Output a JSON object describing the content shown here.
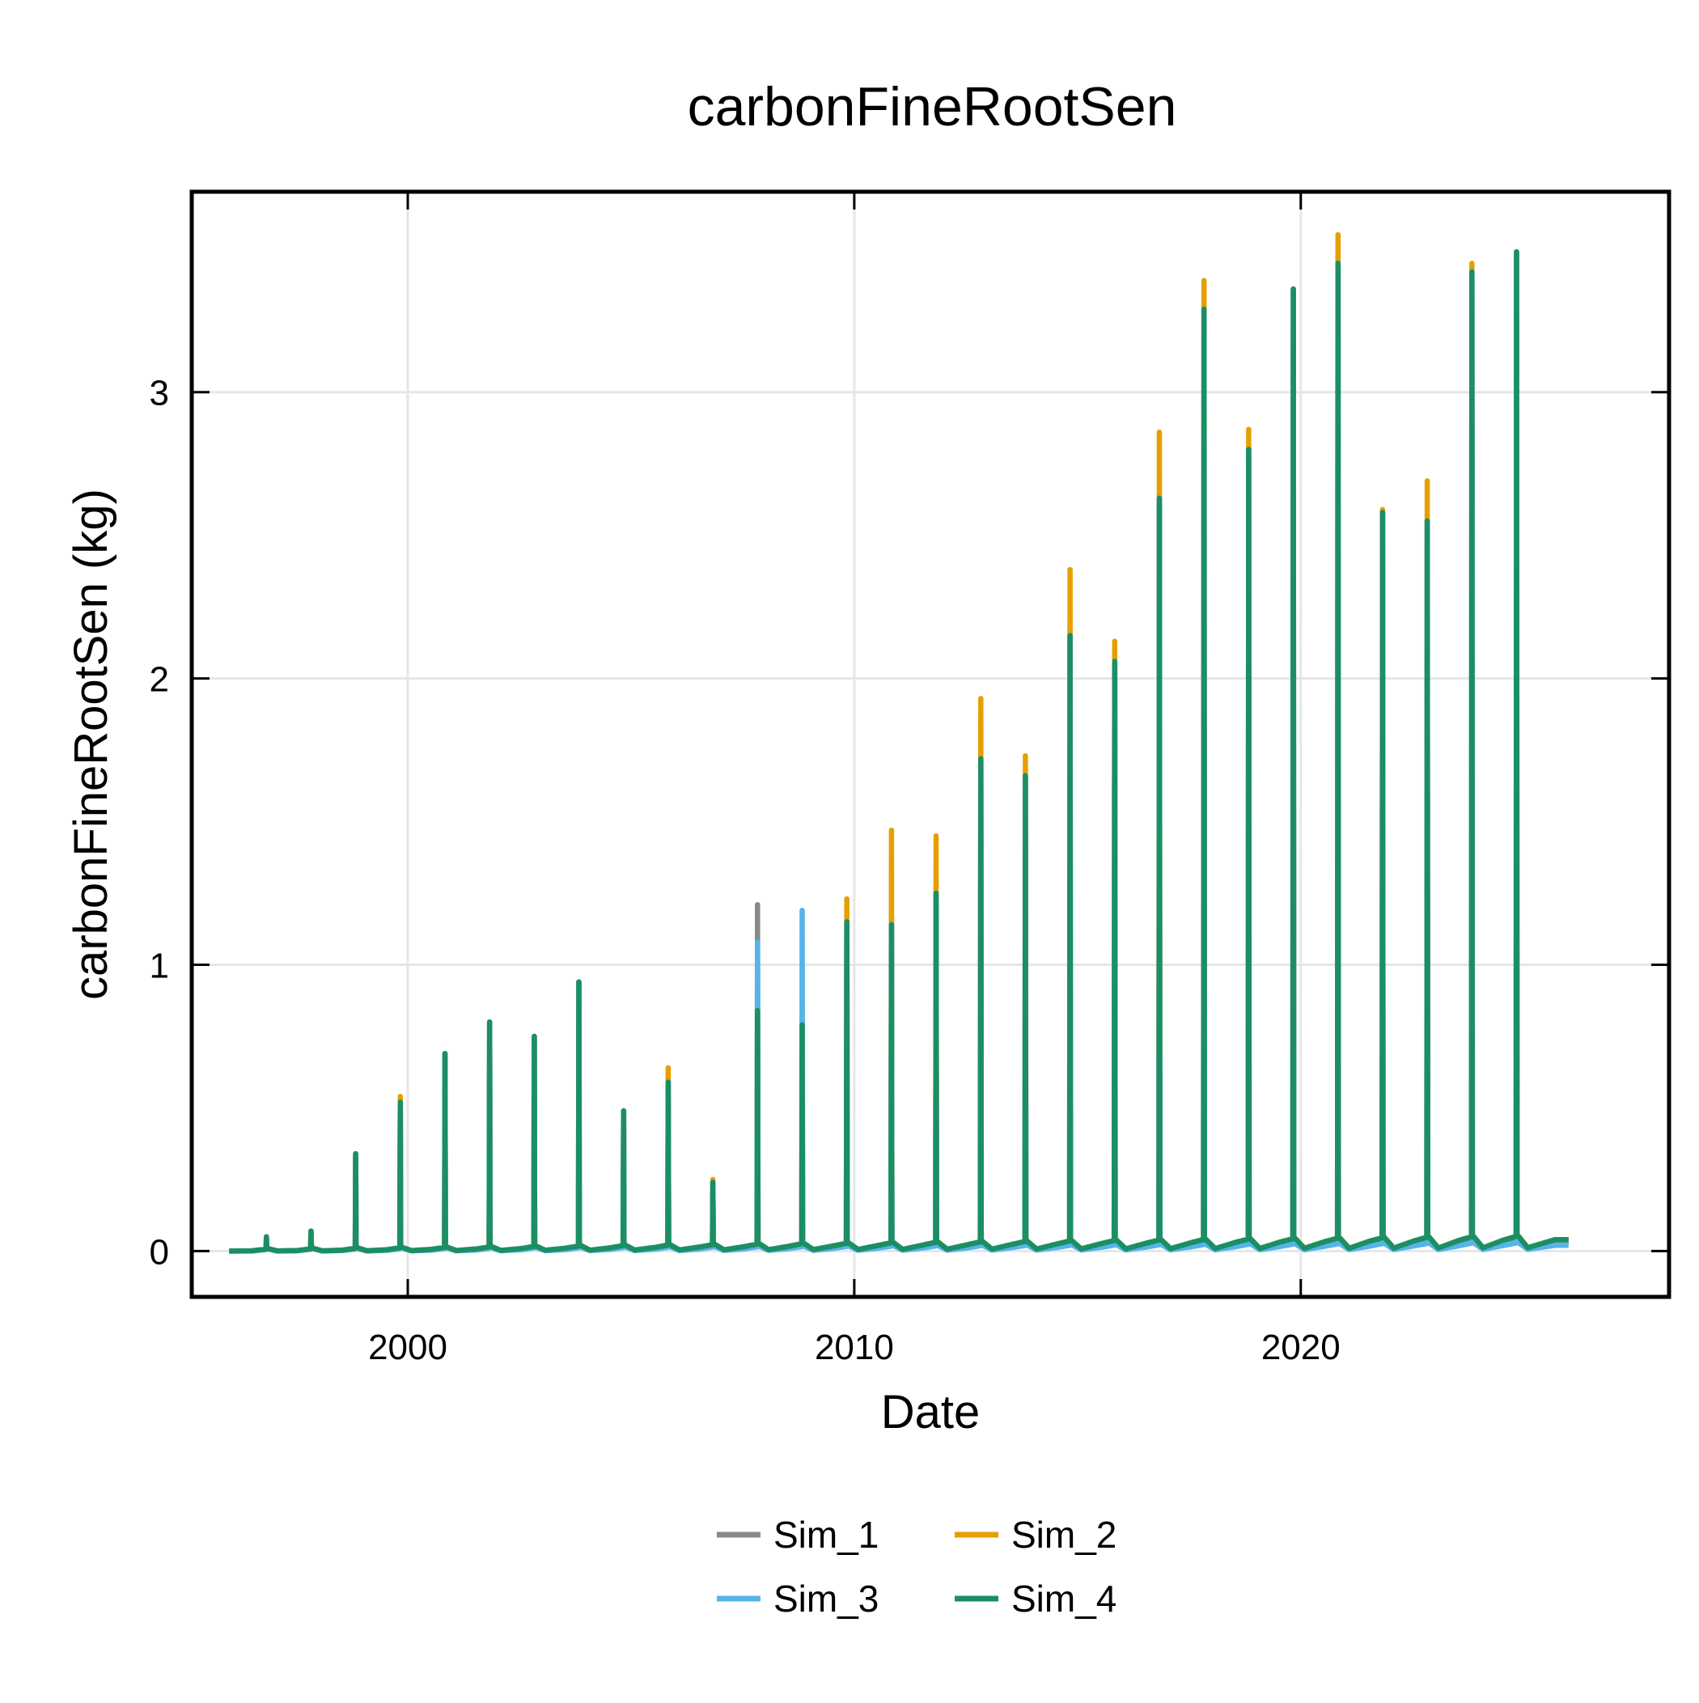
{
  "chart_data": {
    "type": "line",
    "title": "carbonFineRootSen",
    "xlabel": "Date",
    "ylabel": "carbonFineRootSen (kg)",
    "x_axis_kind": "date",
    "xlim": [
      "1995-03-01",
      "2028-04-01"
    ],
    "ylim": [
      -0.16,
      3.7
    ],
    "x_ticks": [
      {
        "value": "2000-01-01",
        "label": "2000"
      },
      {
        "value": "2010-01-01",
        "label": "2010"
      },
      {
        "value": "2020-01-01",
        "label": "2020"
      }
    ],
    "y_ticks": [
      {
        "value": 0,
        "label": "0"
      },
      {
        "value": 1,
        "label": "1"
      },
      {
        "value": 2,
        "label": "2"
      },
      {
        "value": 3,
        "label": "3"
      }
    ],
    "grid": true,
    "legend_position": "bottom-center",
    "series": [
      {
        "name": "Sim_1",
        "color": "#888888",
        "peaks": [
          {
            "date": "1996-11-01",
            "value": 0.05
          },
          {
            "date": "1997-11-01",
            "value": 0.07
          },
          {
            "date": "1998-11-01",
            "value": 0.34
          },
          {
            "date": "1999-11-01",
            "value": 0.52
          },
          {
            "date": "2000-11-01",
            "value": 0.69
          },
          {
            "date": "2001-11-01",
            "value": 0.8
          },
          {
            "date": "2002-11-01",
            "value": 0.75
          },
          {
            "date": "2003-11-01",
            "value": 0.94
          },
          {
            "date": "2004-11-01",
            "value": 0.49
          },
          {
            "date": "2005-11-01",
            "value": 0.59
          },
          {
            "date": "2006-11-01",
            "value": 0.24
          },
          {
            "date": "2007-11-01",
            "value": 1.21
          },
          {
            "date": "2008-11-01",
            "value": 0.78
          },
          {
            "date": "2009-11-01",
            "value": 1.15
          },
          {
            "date": "2010-11-01",
            "value": 1.14
          },
          {
            "date": "2011-11-01",
            "value": 1.25
          },
          {
            "date": "2012-11-01",
            "value": 1.72
          },
          {
            "date": "2013-11-01",
            "value": 1.66
          },
          {
            "date": "2014-11-01",
            "value": 2.15
          },
          {
            "date": "2015-11-01",
            "value": 2.06
          },
          {
            "date": "2016-11-01",
            "value": 2.63
          },
          {
            "date": "2017-11-01",
            "value": 3.29
          },
          {
            "date": "2018-11-01",
            "value": 2.8
          },
          {
            "date": "2019-11-01",
            "value": 3.36
          },
          {
            "date": "2020-11-01",
            "value": 3.45
          },
          {
            "date": "2021-11-01",
            "value": 2.58
          },
          {
            "date": "2022-11-01",
            "value": 2.55
          },
          {
            "date": "2023-11-01",
            "value": 3.42
          },
          {
            "date": "2024-11-01",
            "value": 3.49
          }
        ],
        "baseline_end": 0.03
      },
      {
        "name": "Sim_2",
        "color": "#E69F00",
        "peaks": [
          {
            "date": "1996-11-01",
            "value": 0.05
          },
          {
            "date": "1997-11-01",
            "value": 0.07
          },
          {
            "date": "1998-11-01",
            "value": 0.34
          },
          {
            "date": "1999-11-01",
            "value": 0.54
          },
          {
            "date": "2000-11-01",
            "value": 0.69
          },
          {
            "date": "2001-11-01",
            "value": 0.8
          },
          {
            "date": "2002-11-01",
            "value": 0.75
          },
          {
            "date": "2003-11-01",
            "value": 0.94
          },
          {
            "date": "2004-11-01",
            "value": 0.49
          },
          {
            "date": "2005-11-01",
            "value": 0.64
          },
          {
            "date": "2006-11-01",
            "value": 0.25
          },
          {
            "date": "2007-11-01",
            "value": 0.84
          },
          {
            "date": "2008-11-01",
            "value": 0.78
          },
          {
            "date": "2009-11-01",
            "value": 1.23
          },
          {
            "date": "2010-11-01",
            "value": 1.47
          },
          {
            "date": "2011-11-01",
            "value": 1.45
          },
          {
            "date": "2012-11-01",
            "value": 1.93
          },
          {
            "date": "2013-11-01",
            "value": 1.73
          },
          {
            "date": "2014-11-01",
            "value": 2.38
          },
          {
            "date": "2015-11-01",
            "value": 2.13
          },
          {
            "date": "2016-11-01",
            "value": 2.86
          },
          {
            "date": "2017-11-01",
            "value": 3.39
          },
          {
            "date": "2018-11-01",
            "value": 2.87
          },
          {
            "date": "2019-11-01",
            "value": 3.36
          },
          {
            "date": "2020-11-01",
            "value": 3.55
          },
          {
            "date": "2021-11-01",
            "value": 2.59
          },
          {
            "date": "2022-11-01",
            "value": 2.69
          },
          {
            "date": "2023-11-01",
            "value": 3.45
          },
          {
            "date": "2024-11-01",
            "value": 3.49
          }
        ],
        "baseline_end": 0.04
      },
      {
        "name": "Sim_3",
        "color": "#56B4E9",
        "peaks": [
          {
            "date": "1996-11-01",
            "value": 0.05
          },
          {
            "date": "1997-11-01",
            "value": 0.07
          },
          {
            "date": "1998-11-01",
            "value": 0.34
          },
          {
            "date": "1999-11-01",
            "value": 0.52
          },
          {
            "date": "2000-11-01",
            "value": 0.69
          },
          {
            "date": "2001-11-01",
            "value": 0.8
          },
          {
            "date": "2002-11-01",
            "value": 0.75
          },
          {
            "date": "2003-11-01",
            "value": 0.94
          },
          {
            "date": "2004-11-01",
            "value": 0.49
          },
          {
            "date": "2005-11-01",
            "value": 0.59
          },
          {
            "date": "2006-11-01",
            "value": 0.24
          },
          {
            "date": "2007-11-01",
            "value": 1.08
          },
          {
            "date": "2008-11-01",
            "value": 1.19
          },
          {
            "date": "2009-11-01",
            "value": 1.15
          },
          {
            "date": "2010-11-01",
            "value": 1.14
          },
          {
            "date": "2011-11-01",
            "value": 1.25
          },
          {
            "date": "2012-11-01",
            "value": 1.72
          },
          {
            "date": "2013-11-01",
            "value": 1.66
          },
          {
            "date": "2014-11-01",
            "value": 2.15
          },
          {
            "date": "2015-11-01",
            "value": 2.06
          },
          {
            "date": "2016-11-01",
            "value": 2.63
          },
          {
            "date": "2017-11-01",
            "value": 3.29
          },
          {
            "date": "2018-11-01",
            "value": 2.8
          },
          {
            "date": "2019-11-01",
            "value": 3.36
          },
          {
            "date": "2020-11-01",
            "value": 3.45
          },
          {
            "date": "2021-11-01",
            "value": 2.58
          },
          {
            "date": "2022-11-01",
            "value": 2.55
          },
          {
            "date": "2023-11-01",
            "value": 3.42
          },
          {
            "date": "2024-11-01",
            "value": 3.49
          }
        ],
        "baseline_end": 0.02
      },
      {
        "name": "Sim_4",
        "color": "#1B8F63",
        "peaks": [
          {
            "date": "1996-11-01",
            "value": 0.05
          },
          {
            "date": "1997-11-01",
            "value": 0.07
          },
          {
            "date": "1998-11-01",
            "value": 0.34
          },
          {
            "date": "1999-11-01",
            "value": 0.52
          },
          {
            "date": "2000-11-01",
            "value": 0.69
          },
          {
            "date": "2001-11-01",
            "value": 0.8
          },
          {
            "date": "2002-11-01",
            "value": 0.75
          },
          {
            "date": "2003-11-01",
            "value": 0.94
          },
          {
            "date": "2004-11-01",
            "value": 0.49
          },
          {
            "date": "2005-11-01",
            "value": 0.59
          },
          {
            "date": "2006-11-01",
            "value": 0.24
          },
          {
            "date": "2007-11-01",
            "value": 0.84
          },
          {
            "date": "2008-11-01",
            "value": 0.79
          },
          {
            "date": "2009-11-01",
            "value": 1.15
          },
          {
            "date": "2010-11-01",
            "value": 1.14
          },
          {
            "date": "2011-11-01",
            "value": 1.25
          },
          {
            "date": "2012-11-01",
            "value": 1.72
          },
          {
            "date": "2013-11-01",
            "value": 1.66
          },
          {
            "date": "2014-11-01",
            "value": 2.15
          },
          {
            "date": "2015-11-01",
            "value": 2.06
          },
          {
            "date": "2016-11-01",
            "value": 2.63
          },
          {
            "date": "2017-11-01",
            "value": 3.29
          },
          {
            "date": "2018-11-01",
            "value": 2.8
          },
          {
            "date": "2019-11-01",
            "value": 3.36
          },
          {
            "date": "2020-11-01",
            "value": 3.45
          },
          {
            "date": "2021-11-01",
            "value": 2.58
          },
          {
            "date": "2022-11-01",
            "value": 2.55
          },
          {
            "date": "2023-11-01",
            "value": 3.42
          },
          {
            "date": "2024-11-01",
            "value": 3.49
          }
        ],
        "baseline_end": 0.04
      }
    ],
    "series_start": "1996-01-01",
    "series_end": "2025-12-31"
  }
}
